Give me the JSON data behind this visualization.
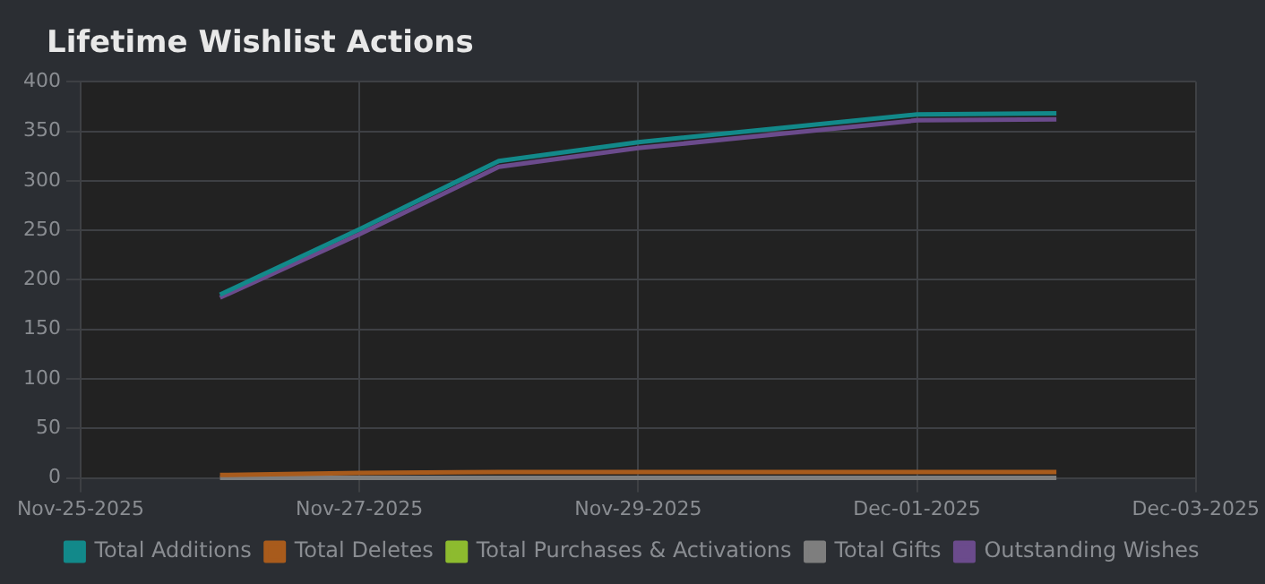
{
  "chart_data": {
    "type": "line",
    "title": "Lifetime Wishlist Actions",
    "x": [
      "2025-11-26",
      "2025-11-27",
      "2025-11-28",
      "2025-11-29",
      "2025-11-30",
      "2025-12-01",
      "2025-12-02"
    ],
    "series": [
      {
        "name": "Total Additions",
        "color": "#12898a",
        "values": [
          185,
          251,
          320,
          339,
          353,
          367,
          368
        ]
      },
      {
        "name": "Total Deletes",
        "color": "#a85b1c",
        "values": [
          3,
          5,
          6,
          6,
          6,
          6,
          6
        ]
      },
      {
        "name": "Total Purchases & Activations",
        "color": "#8dbb2f",
        "values": [
          null,
          null,
          null,
          null,
          null,
          null,
          null
        ]
      },
      {
        "name": "Total Gifts",
        "color": "#7e7e7e",
        "values": [
          0,
          0,
          0,
          0,
          0,
          0,
          0
        ]
      },
      {
        "name": "Outstanding Wishes",
        "color": "#6b4b8c",
        "values": [
          182,
          246,
          314,
          333,
          347,
          361,
          362
        ]
      }
    ],
    "xlim": [
      "2025-11-25",
      "2025-12-03"
    ],
    "xticks": [
      {
        "value": "2025-11-25",
        "label": "Nov-25-2025"
      },
      {
        "value": "2025-11-27",
        "label": "Nov-27-2025"
      },
      {
        "value": "2025-11-29",
        "label": "Nov-29-2025"
      },
      {
        "value": "2025-12-01",
        "label": "Dec-01-2025"
      },
      {
        "value": "2025-12-03",
        "label": "Dec-03-2025"
      }
    ],
    "ylim": [
      0,
      400
    ],
    "yticks": [
      0,
      50,
      100,
      150,
      200,
      250,
      300,
      350,
      400
    ],
    "grid": true,
    "legend": "bottom",
    "marker": "none",
    "line_style": "solid"
  }
}
